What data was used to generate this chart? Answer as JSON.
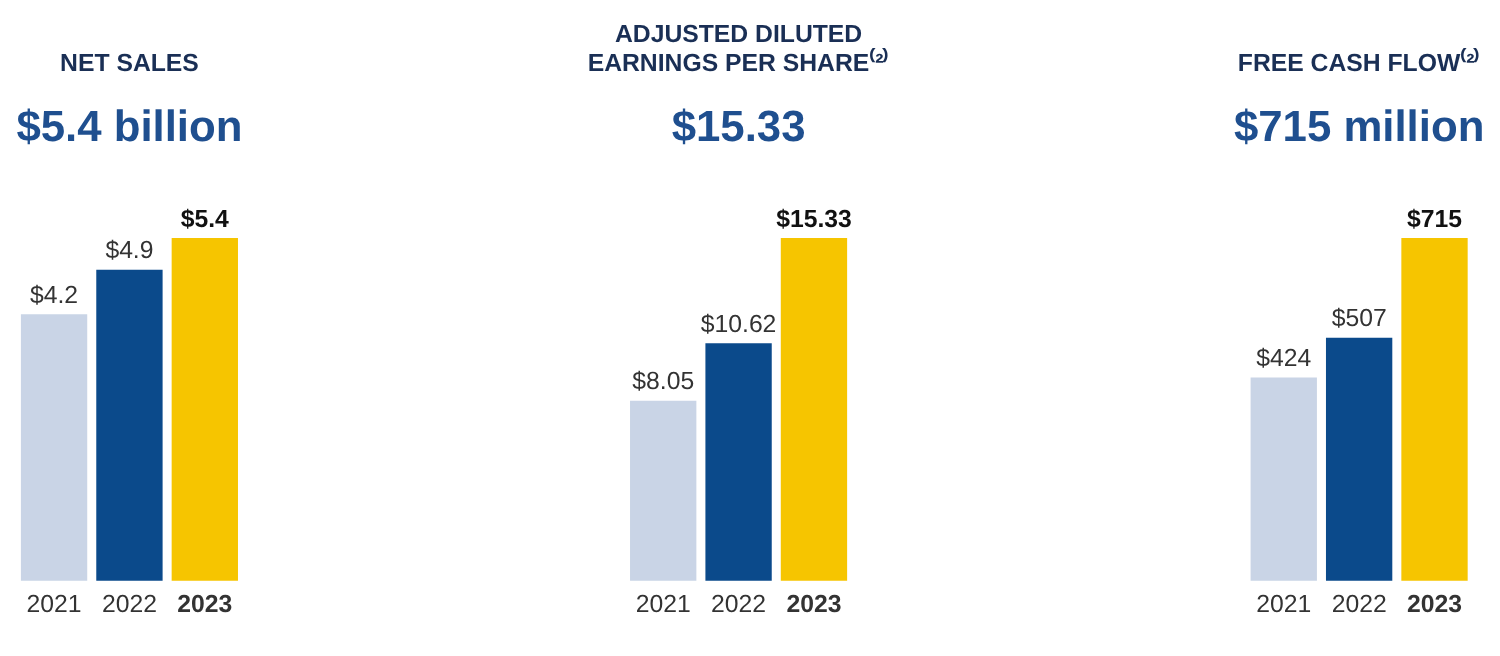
{
  "chart_data": [
    {
      "type": "bar",
      "title": "NET SALES",
      "subtitle": "$5.4 billion",
      "categories": [
        "2021",
        "2022",
        "2023"
      ],
      "values": [
        4.2,
        4.9,
        5.4
      ],
      "colors": [
        "#c9d4e6",
        "#0b4a8b",
        "#f6c500"
      ],
      "value_labels": [
        "$4.2",
        "$4.9",
        "$5.4"
      ]
    },
    {
      "type": "bar",
      "title": "ADJUSTED DILUTED\nEARNINGS PER SHARE⁽²⁾",
      "subtitle": "$15.33",
      "categories": [
        "2021",
        "2022",
        "2023"
      ],
      "values": [
        8.05,
        10.62,
        15.33
      ],
      "colors": [
        "#c9d4e6",
        "#0b4a8b",
        "#f6c500"
      ],
      "value_labels": [
        "$8.05",
        "$10.62",
        "$15.33"
      ]
    },
    {
      "type": "bar",
      "title": "FREE CASH FLOW⁽²⁾",
      "subtitle": "$715 million",
      "categories": [
        "2021",
        "2022",
        "2023"
      ],
      "values": [
        424,
        507,
        715
      ],
      "colors": [
        "#c9d4e6",
        "#0b4a8b",
        "#f6c500"
      ],
      "value_labels": [
        "$424",
        "$507",
        "$715"
      ]
    }
  ]
}
